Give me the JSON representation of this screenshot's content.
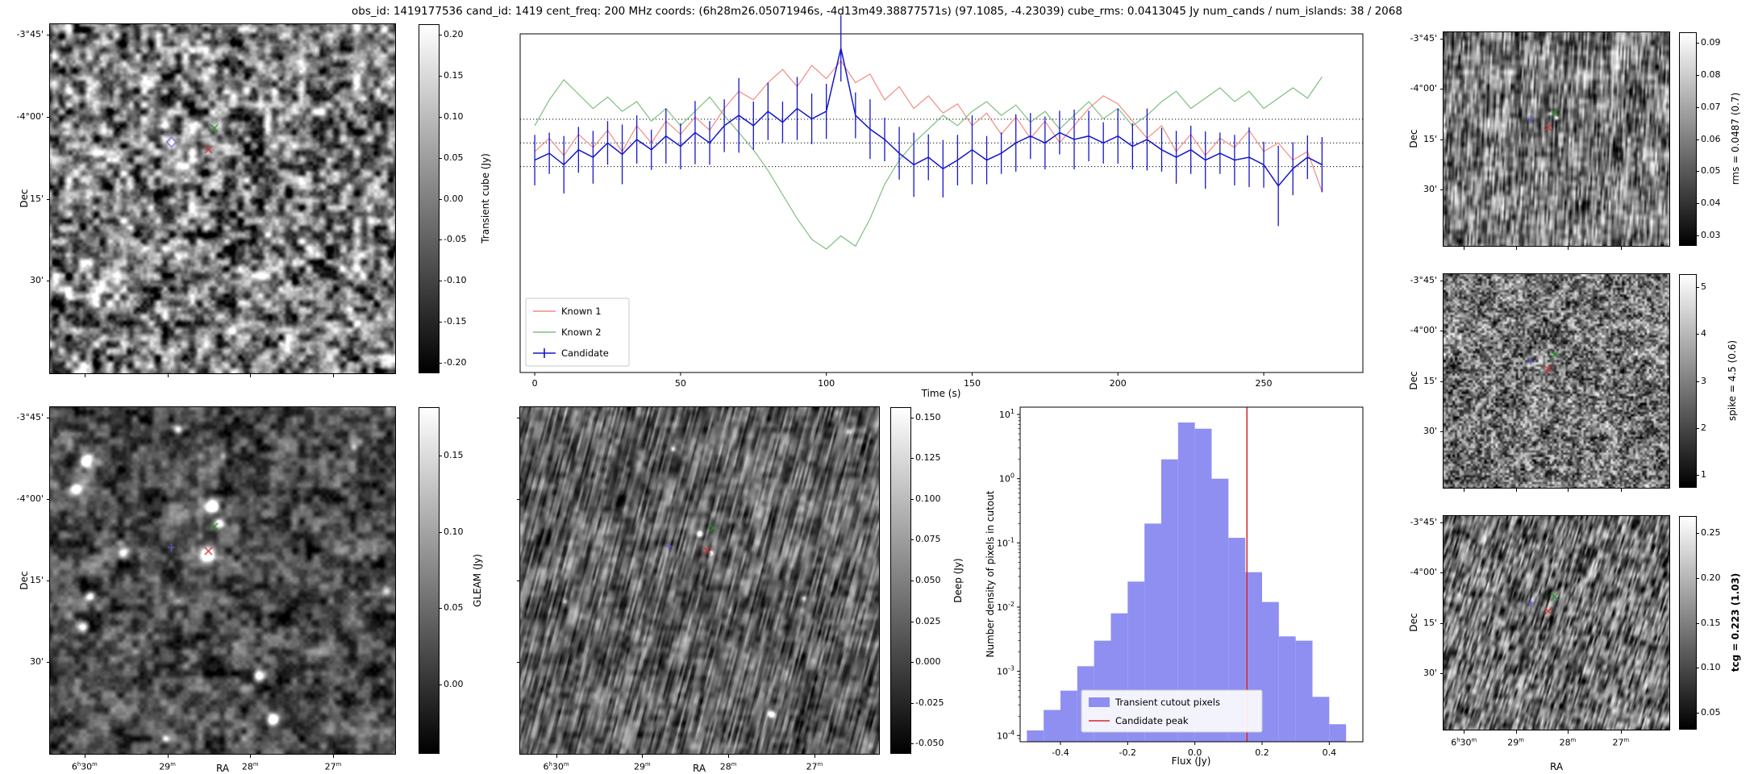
{
  "title": "obs_id: 1419177536 cand_id: 1419 cent_freq: 200 MHz coords: (6h28m26.05071946s, -4d13m49.38877571s) (97.1085, -4.23039) cube_rms: 0.0413045 Jy num_cands / num_islands: 38 / 2068",
  "labels": {
    "dec": "Dec",
    "ra": "RA"
  },
  "panels": {
    "transient_cube": {
      "cbar": {
        "label": "Transient cube (Jy)",
        "ticks": [
          "0.20",
          "0.15",
          "0.10",
          "0.05",
          "0.00",
          "-0.05",
          "-0.10",
          "-0.15",
          "-0.20"
        ],
        "fracs": [
          0.03,
          0.1475,
          0.265,
          0.3825,
          0.5,
          0.6175,
          0.735,
          0.8525,
          0.97
        ]
      },
      "yticks": {
        "labels": [
          "-3°45'",
          "-4°00'",
          "15'",
          "30'"
        ],
        "fracs": [
          0.03,
          0.265,
          0.5,
          0.735
        ]
      },
      "xticks": {
        "labels": [
          "",
          "",
          "",
          ""
        ],
        "fracs": [
          0.1,
          0.34,
          0.58,
          0.82
        ]
      },
      "markers": [
        {
          "shape": "diamond",
          "color": "#7a6fd0",
          "x": 0.352,
          "y": 0.338
        },
        {
          "shape": "x",
          "color": "#2e8b2e",
          "x": 0.476,
          "y": 0.298
        },
        {
          "shape": "x",
          "color": "#cc3333",
          "x": 0.459,
          "y": 0.359
        }
      ]
    },
    "gleam": {
      "cbar": {
        "label": "GLEAM (Jy)",
        "ticks": [
          "0.15",
          "0.10",
          "0.05",
          "0.00"
        ],
        "fracs": [
          0.14,
          0.36,
          0.58,
          0.8
        ]
      },
      "yticks": {
        "labels": [
          "-3°45'",
          "-4°00'",
          "15'",
          "30'"
        ],
        "fracs": [
          0.03,
          0.265,
          0.5,
          0.735
        ]
      },
      "xticks": {
        "labels": [
          "6h30m",
          "29m",
          "28m",
          "27m"
        ],
        "fracs": [
          0.1,
          0.34,
          0.58,
          0.82
        ]
      },
      "markers": [
        {
          "shape": "+",
          "color": "#5a5ad0",
          "x": 0.352,
          "y": 0.405
        },
        {
          "shape": "x",
          "color": "#2e8b2e",
          "x": 0.476,
          "y": 0.345
        },
        {
          "shape": "x",
          "color": "#cc3333",
          "x": 0.459,
          "y": 0.415
        }
      ]
    },
    "deep": {
      "cbar": {
        "label": "Deep (Jy)",
        "ticks": [
          "0.150",
          "0.125",
          "0.100",
          "0.075",
          "0.050",
          "0.025",
          "0.000",
          "-0.025",
          "-0.050"
        ],
        "fracs": [
          0.03,
          0.1475,
          0.265,
          0.3825,
          0.5,
          0.6175,
          0.735,
          0.8525,
          0.97
        ]
      },
      "yticks": {
        "labels": [
          "",
          "",
          "",
          ""
        ],
        "fracs": [
          0.03,
          0.265,
          0.5,
          0.735
        ]
      },
      "xticks": {
        "labels": [
          "6h30m",
          "29m",
          "28m",
          "27m"
        ],
        "fracs": [
          0.1,
          0.34,
          0.58,
          0.82
        ]
      },
      "markers": [
        {
          "shape": "+",
          "color": "#5a5ad0",
          "x": 0.415,
          "y": 0.402
        },
        {
          "shape": "x",
          "color": "#2e8b2e",
          "x": 0.537,
          "y": 0.349
        },
        {
          "shape": "x",
          "color": "#cc3333",
          "x": 0.521,
          "y": 0.414
        }
      ]
    },
    "rms": {
      "cbar": {
        "label": "rms = 0.0487 (0.7)",
        "ticks": [
          "0.09",
          "0.08",
          "0.07",
          "0.06",
          "0.05",
          "0.04",
          "0.03"
        ],
        "fracs": [
          0.05,
          0.2,
          0.35,
          0.5,
          0.65,
          0.8,
          0.95
        ]
      },
      "yticks": {
        "labels": [
          "-3°45'",
          "-4°00'",
          "15'",
          "30'"
        ],
        "fracs": [
          0.03,
          0.265,
          0.5,
          0.735
        ]
      },
      "xticks": {
        "labels": [
          "",
          "",
          "",
          ""
        ],
        "fracs": [
          0.09,
          0.32,
          0.55,
          0.785
        ]
      },
      "markers": [
        {
          "shape": "+",
          "color": "#5a5ad0",
          "x": 0.386,
          "y": 0.407
        },
        {
          "shape": "x",
          "color": "#2e8b2e",
          "x": 0.492,
          "y": 0.377
        },
        {
          "shape": "x",
          "color": "#cc3333",
          "x": 0.464,
          "y": 0.445
        }
      ]
    },
    "spike": {
      "cbar": {
        "label": "spike = 4.5 (0.6)",
        "ticks": [
          "5",
          "4",
          "3",
          "2",
          "1"
        ],
        "fracs": [
          0.06,
          0.28,
          0.5,
          0.72,
          0.94
        ]
      },
      "yticks": {
        "labels": [
          "-3°45'",
          "-4°00'",
          "15'",
          "30'"
        ],
        "fracs": [
          0.03,
          0.265,
          0.5,
          0.735
        ]
      },
      "xticks": {
        "labels": [
          "",
          "",
          "",
          ""
        ],
        "fracs": [
          0.09,
          0.32,
          0.55,
          0.785
        ]
      },
      "markers": [
        {
          "shape": "+",
          "color": "#5a5ad0",
          "x": 0.386,
          "y": 0.407
        },
        {
          "shape": "x",
          "color": "#2e8b2e",
          "x": 0.492,
          "y": 0.377
        },
        {
          "shape": "x",
          "color": "#cc3333",
          "x": 0.464,
          "y": 0.445
        }
      ]
    },
    "tcg": {
      "cbar": {
        "label": "tcg = 0.223 (1.03)",
        "bold": true,
        "ticks": [
          "0.25",
          "0.20",
          "0.15",
          "0.10",
          "0.05"
        ],
        "fracs": [
          0.08,
          0.29,
          0.5,
          0.71,
          0.92
        ]
      },
      "yticks": {
        "labels": [
          "-3°45'",
          "-4°00'",
          "15'",
          "30'"
        ],
        "fracs": [
          0.03,
          0.265,
          0.5,
          0.735
        ]
      },
      "xticks": {
        "labels": [
          "6h30m",
          "29m",
          "28m",
          "27m"
        ],
        "fracs": [
          0.09,
          0.32,
          0.55,
          0.785
        ]
      },
      "markers": [
        {
          "shape": "+",
          "color": "#5a5ad0",
          "x": 0.386,
          "y": 0.407
        },
        {
          "shape": "x",
          "color": "#2e8b2e",
          "x": 0.492,
          "y": 0.377
        },
        {
          "shape": "x",
          "color": "#cc3333",
          "x": 0.464,
          "y": 0.445
        }
      ]
    }
  },
  "chart_data": [
    {
      "id": "light_curve",
      "type": "line",
      "xlabel": "Time (s)",
      "ylabel": "",
      "x": [
        0,
        5,
        10,
        15,
        20,
        25,
        30,
        35,
        40,
        45,
        50,
        55,
        60,
        65,
        70,
        75,
        80,
        85,
        90,
        95,
        100,
        105,
        110,
        115,
        120,
        125,
        130,
        135,
        140,
        145,
        150,
        155,
        160,
        165,
        170,
        175,
        180,
        185,
        190,
        195,
        200,
        205,
        210,
        215,
        220,
        225,
        230,
        235,
        240,
        245,
        250,
        255,
        260,
        265,
        270
      ],
      "series": [
        {
          "name": "Known 1",
          "color": "#f28c80",
          "values": [
            -0.015,
            0.008,
            -0.022,
            0.015,
            -0.008,
            0.022,
            -0.015,
            0.03,
            0.0,
            0.038,
            0.015,
            0.045,
            0.022,
            0.06,
            0.09,
            0.075,
            0.105,
            0.128,
            0.098,
            0.135,
            0.112,
            0.143,
            0.105,
            0.12,
            0.075,
            0.098,
            0.06,
            0.082,
            0.052,
            0.068,
            0.03,
            0.052,
            0.015,
            0.045,
            0.008,
            0.038,
            0.0,
            0.03,
            0.06,
            0.082,
            0.068,
            0.038,
            0.008,
            0.03,
            -0.015,
            0.015,
            -0.022,
            0.008,
            -0.008,
            0.022,
            -0.015,
            0.0,
            -0.03,
            -0.015,
            -0.085
          ]
        },
        {
          "name": "Known 2",
          "color": "#7fbf7f",
          "values": [
            0.03,
            0.075,
            0.11,
            0.085,
            0.06,
            0.08,
            0.055,
            0.072,
            0.038,
            0.06,
            0.03,
            0.055,
            0.08,
            0.048,
            0.018,
            -0.012,
            -0.048,
            -0.09,
            -0.132,
            -0.168,
            -0.185,
            -0.162,
            -0.18,
            -0.132,
            -0.072,
            -0.03,
            0.0,
            0.024,
            0.048,
            0.03,
            0.055,
            0.072,
            0.048,
            0.066,
            0.036,
            0.055,
            0.024,
            0.048,
            0.072,
            0.042,
            0.06,
            0.03,
            0.048,
            0.072,
            0.09,
            0.06,
            0.078,
            0.096,
            0.072,
            0.09,
            0.06,
            0.078,
            0.096,
            0.078,
            0.115
          ]
        },
        {
          "name": "Candidate",
          "color": "#1515cc",
          "values": [
            -0.03,
            -0.018,
            -0.038,
            -0.012,
            -0.025,
            0.0,
            -0.02,
            0.006,
            -0.012,
            0.012,
            -0.006,
            0.018,
            0.0,
            0.03,
            0.048,
            0.03,
            0.055,
            0.036,
            0.06,
            0.042,
            0.055,
            0.165,
            0.048,
            0.024,
            0.006,
            -0.018,
            -0.038,
            -0.025,
            -0.045,
            -0.03,
            -0.012,
            -0.03,
            -0.018,
            0.0,
            0.012,
            0.0,
            0.018,
            0.006,
            0.012,
            0.0,
            0.012,
            -0.006,
            0.006,
            -0.012,
            -0.025,
            -0.012,
            -0.03,
            -0.018,
            -0.03,
            -0.025,
            -0.038,
            -0.075,
            -0.045,
            -0.025,
            -0.038
          ],
          "yerr": [
            0.044,
            0.036,
            0.05,
            0.04,
            0.046,
            0.038,
            0.052,
            0.042,
            0.035,
            0.048,
            0.04,
            0.055,
            0.038,
            0.046,
            0.065,
            0.042,
            0.05,
            0.036,
            0.055,
            0.044,
            0.048,
            0.058,
            0.04,
            0.052,
            0.038,
            0.046,
            0.056,
            0.04,
            0.05,
            0.044,
            0.06,
            0.042,
            0.036,
            0.05,
            0.04,
            0.046,
            0.038,
            0.052,
            0.044,
            0.036,
            0.048,
            0.04,
            0.054,
            0.038,
            0.046,
            0.042,
            0.05,
            0.036,
            0.044,
            0.052,
            0.04,
            0.07,
            0.046,
            0.038,
            0.048
          ]
        }
      ],
      "hlines": [
        0.0413,
        0.0,
        -0.0413
      ],
      "xticks": [
        0,
        50,
        100,
        150,
        200,
        250
      ],
      "xlim": [
        -5,
        284
      ],
      "ylim": [
        -0.4,
        0.19
      ],
      "legend_position": "lower left"
    },
    {
      "id": "flux_histogram",
      "type": "bar",
      "xlabel": "Flux (Jy)",
      "ylabel": "Number density of pixels in cutout",
      "bin_edges": [
        -0.5,
        -0.45,
        -0.4,
        -0.35,
        -0.3,
        -0.25,
        -0.2,
        -0.15,
        -0.1,
        -0.05,
        0.0,
        0.05,
        0.1,
        0.15,
        0.2,
        0.25,
        0.3,
        0.35,
        0.4,
        0.45
      ],
      "values": [
        0.00012,
        0.00025,
        0.0005,
        0.0012,
        0.003,
        0.008,
        0.025,
        0.2,
        2.0,
        7.5,
        6.0,
        1.0,
        0.12,
        0.035,
        0.012,
        0.0035,
        0.003,
        0.0004,
        0.00015
      ],
      "bar_color": "#7b7bf0",
      "bar_label": "Transient cutout pixels",
      "vline": {
        "x": 0.155,
        "color": "#d62828",
        "label": "Candidate peak"
      },
      "yscale": "log",
      "xlim": [
        -0.52,
        0.5
      ],
      "ylim": [
        8e-05,
        13
      ],
      "xticks": [
        -0.4,
        -0.2,
        0.0,
        0.2,
        0.4
      ],
      "ytick_exponents": [
        1,
        0,
        -1,
        -2,
        -3,
        -4
      ],
      "legend_position": "lower center"
    }
  ]
}
